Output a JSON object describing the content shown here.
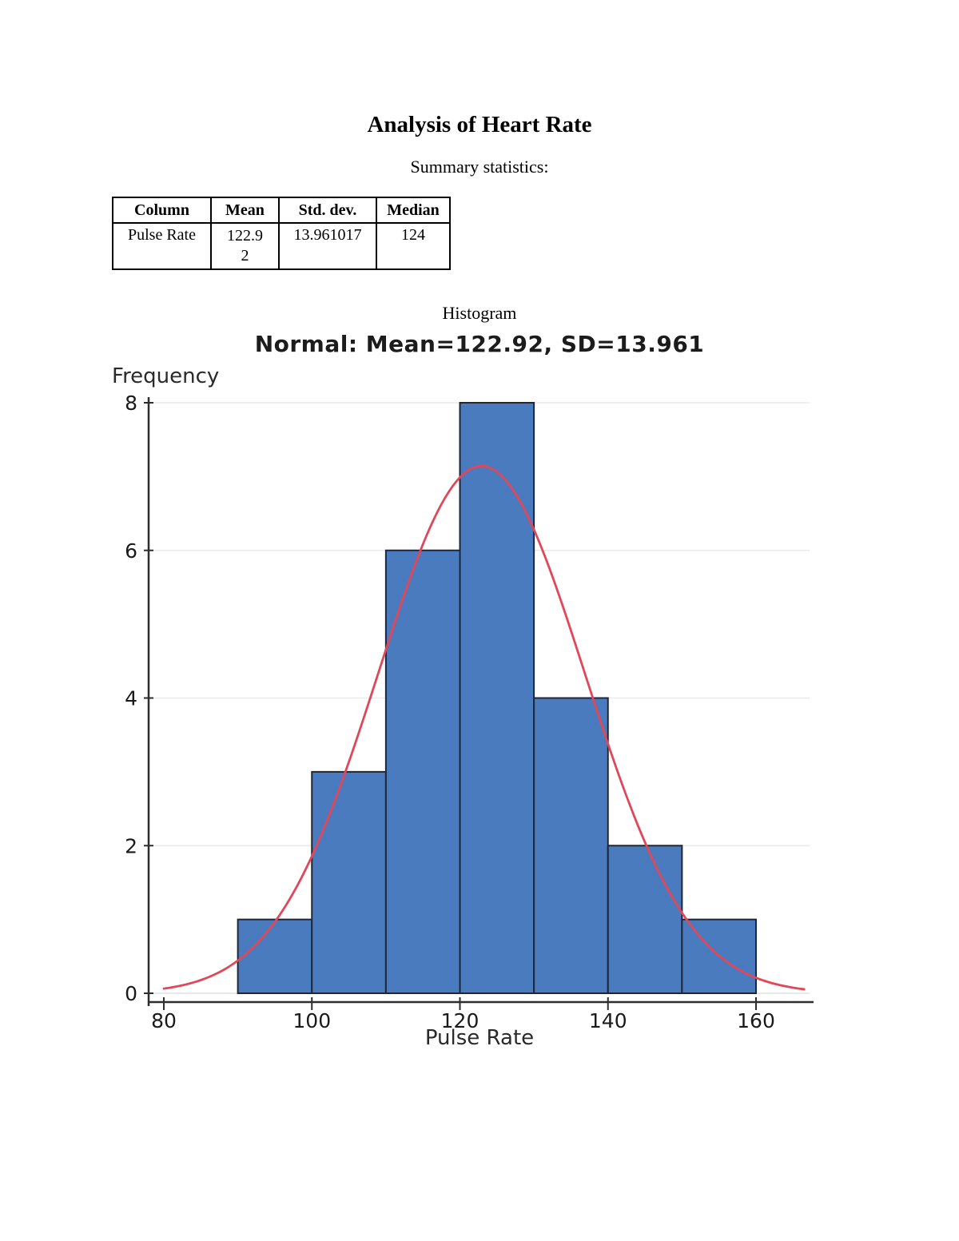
{
  "document": {
    "title": "Analysis of Heart Rate",
    "subtitle": "Summary statistics:",
    "histogram_label": "Histogram"
  },
  "summary_table": {
    "headers": [
      "Column",
      "Mean",
      "Std. dev.",
      "Median"
    ],
    "rows": [
      [
        "Pulse Rate",
        "122.92",
        "13.961017",
        "124"
      ]
    ]
  },
  "chart_data": {
    "type": "bar",
    "subtype": "histogram-with-normal-overlay",
    "title": "Normal: Mean=122.92, SD=13.961",
    "xlabel": "Pulse Rate",
    "ylabel": "Frequency",
    "bin_edges": [
      90,
      100,
      110,
      120,
      130,
      140,
      150,
      160
    ],
    "frequencies": [
      1,
      3,
      6,
      8,
      4,
      2,
      1
    ],
    "x_ticks": [
      80,
      100,
      120,
      140,
      160
    ],
    "y_ticks": [
      0,
      2,
      4,
      6,
      8
    ],
    "xlim": [
      80,
      167.5
    ],
    "ylim": [
      0,
      8.6
    ],
    "grid": "horizontal",
    "legend": "none",
    "normal_overlay": {
      "mean": 122.92,
      "sd": 13.961,
      "n": 25,
      "bin_width": 10
    },
    "colors": {
      "bar_fill": "#4a7bbf",
      "bar_stroke": "#1e2638",
      "curve": "#e04758",
      "grid": "#eaeaea",
      "zero_grid": "#e2e2e2",
      "axis": "#2e2e2e",
      "tick_text": "#1a1a1a"
    }
  }
}
